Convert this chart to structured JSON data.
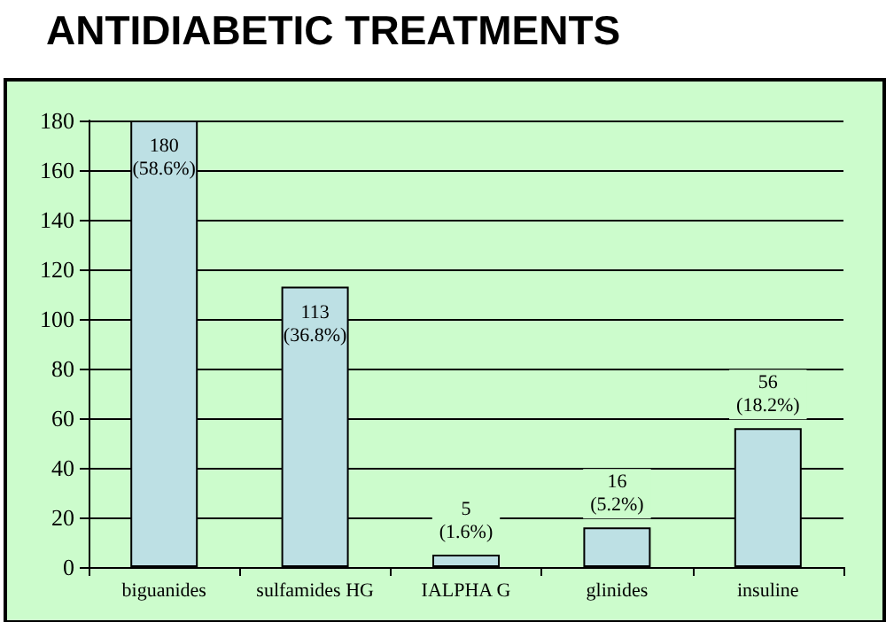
{
  "chart_data": {
    "type": "bar",
    "title": "ANTIDIABETIC TREATMENTS",
    "categories": [
      "biguanides",
      "sulfamides HG",
      "IALPHA G",
      "glinides",
      "insuline"
    ],
    "values": [
      180,
      113,
      5,
      16,
      56
    ],
    "value_labels": [
      "180\n(58.6%)",
      "113\n(36.8%)",
      "5\n(1.6%)",
      "16\n(5.2%)",
      "56\n(18.2%)"
    ],
    "color": "#bde0e4",
    "ylim": [
      0,
      180
    ],
    "yticks": [
      0,
      20,
      40,
      60,
      80,
      100,
      120,
      140,
      160,
      180
    ],
    "grid": "y"
  }
}
